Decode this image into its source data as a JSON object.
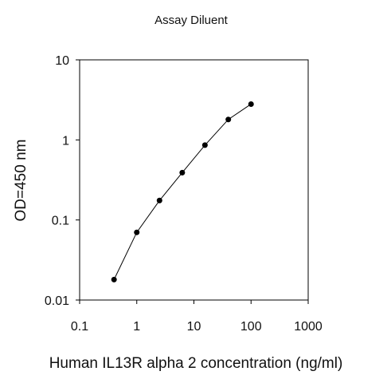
{
  "chart_data": {
    "type": "scatter",
    "title": "Assay Diluent",
    "xlabel": "Human IL13R alpha 2 concentration (ng/ml)",
    "ylabel": "OD=450 nm",
    "x_scale": "log",
    "y_scale": "log",
    "xlim": [
      0.1,
      1000
    ],
    "ylim": [
      0.01,
      10
    ],
    "x_ticks": [
      {
        "value": 0.1,
        "label": "0.1"
      },
      {
        "value": 1,
        "label": "1"
      },
      {
        "value": 10,
        "label": "10"
      },
      {
        "value": 100,
        "label": "100"
      },
      {
        "value": 1000,
        "label": "1000"
      }
    ],
    "y_ticks": [
      {
        "value": 0.01,
        "label": "0.01"
      },
      {
        "value": 0.1,
        "label": "0.1"
      },
      {
        "value": 1,
        "label": "1"
      },
      {
        "value": 10,
        "label": "10"
      }
    ],
    "grid": false,
    "legend": "none",
    "series": [
      {
        "points": [
          {
            "x": 0.4,
            "y": 0.018
          },
          {
            "x": 1,
            "y": 0.07
          },
          {
            "x": 2.5,
            "y": 0.175
          },
          {
            "x": 6.25,
            "y": 0.39
          },
          {
            "x": 15.6,
            "y": 0.86
          },
          {
            "x": 40,
            "y": 1.8
          },
          {
            "x": 100,
            "y": 2.8
          }
        ],
        "color": "#000000",
        "connect": true
      }
    ]
  }
}
